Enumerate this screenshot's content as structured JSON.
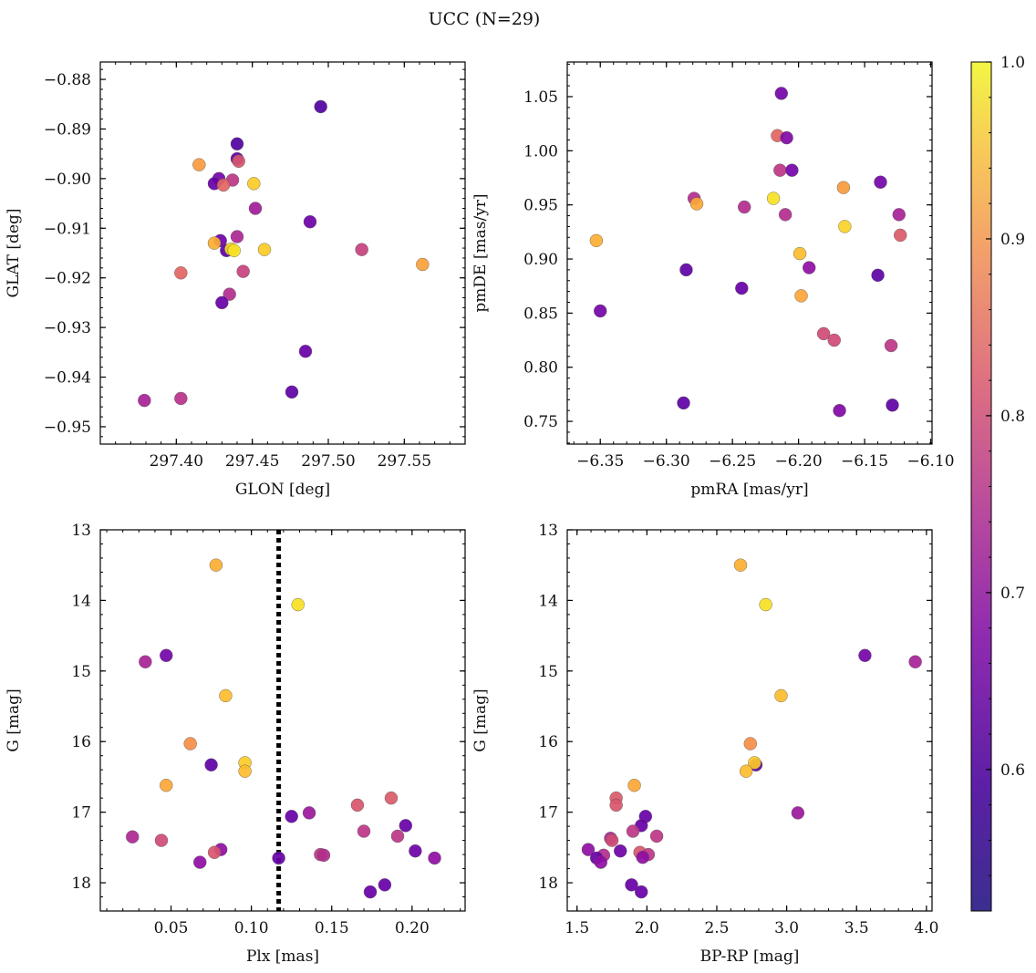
{
  "figure": {
    "title": "UCC (N=29)"
  },
  "colorbar": {
    "colormap": "plasma",
    "range": [
      0.52,
      1.0
    ],
    "ticks": [
      0.6,
      0.7,
      0.8,
      0.9,
      1.0
    ],
    "tick_labels": [
      "0.6",
      "0.7",
      "0.8",
      "0.9",
      "1.0"
    ]
  },
  "chart_data": [
    {
      "type": "scatter",
      "xlabel": "GLON [deg]",
      "ylabel": "GLAT [deg]",
      "xlim": [
        297.35,
        297.59
      ],
      "ylim": [
        -0.9535,
        -0.8765
      ],
      "xticks": [
        297.4,
        297.45,
        297.5,
        297.55
      ],
      "xtick_labels": [
        "297.40",
        "297.45",
        "297.50",
        "297.55"
      ],
      "yticks": [
        -0.88,
        -0.89,
        -0.9,
        -0.91,
        -0.92,
        -0.93,
        -0.94,
        -0.95
      ],
      "ytick_labels": [
        "−0.88",
        "−0.89",
        "−0.90",
        "−0.91",
        "−0.92",
        "−0.93",
        "−0.94",
        "−0.95"
      ],
      "points": [
        {
          "x": 297.495,
          "y": -0.8855,
          "c": 0.53
        },
        {
          "x": 297.44,
          "y": -0.893,
          "c": 0.53
        },
        {
          "x": 297.44,
          "y": -0.896,
          "c": 0.55
        },
        {
          "x": 297.441,
          "y": -0.8965,
          "c": 0.76
        },
        {
          "x": 297.415,
          "y": -0.8972,
          "c": 0.88
        },
        {
          "x": 297.428,
          "y": -0.9,
          "c": 0.58
        },
        {
          "x": 297.437,
          "y": -0.9003,
          "c": 0.7
        },
        {
          "x": 297.425,
          "y": -0.901,
          "c": 0.56
        },
        {
          "x": 297.431,
          "y": -0.9013,
          "c": 0.79
        },
        {
          "x": 297.451,
          "y": -0.901,
          "c": 0.95
        },
        {
          "x": 297.452,
          "y": -0.906,
          "c": 0.65
        },
        {
          "x": 297.488,
          "y": -0.9087,
          "c": 0.57
        },
        {
          "x": 297.44,
          "y": -0.9117,
          "c": 0.67
        },
        {
          "x": 297.429,
          "y": -0.9125,
          "c": 0.57
        },
        {
          "x": 297.425,
          "y": -0.913,
          "c": 0.91
        },
        {
          "x": 297.433,
          "y": -0.9145,
          "c": 0.55
        },
        {
          "x": 297.436,
          "y": -0.9142,
          "c": 0.97
        },
        {
          "x": 297.438,
          "y": -0.9145,
          "c": 0.98
        },
        {
          "x": 297.458,
          "y": -0.9143,
          "c": 0.95
        },
        {
          "x": 297.522,
          "y": -0.9143,
          "c": 0.72
        },
        {
          "x": 297.562,
          "y": -0.9173,
          "c": 0.89
        },
        {
          "x": 297.403,
          "y": -0.919,
          "c": 0.79
        },
        {
          "x": 297.444,
          "y": -0.9187,
          "c": 0.72
        },
        {
          "x": 297.435,
          "y": -0.9233,
          "c": 0.68
        },
        {
          "x": 297.43,
          "y": -0.925,
          "c": 0.56
        },
        {
          "x": 297.485,
          "y": -0.9348,
          "c": 0.56
        },
        {
          "x": 297.476,
          "y": -0.943,
          "c": 0.55
        },
        {
          "x": 297.379,
          "y": -0.9447,
          "c": 0.66
        },
        {
          "x": 297.403,
          "y": -0.9443,
          "c": 0.69
        }
      ]
    },
    {
      "type": "scatter",
      "xlabel": "pmRA [mas/yr]",
      "ylabel": "pmDE [mas/yr]",
      "xlim": [
        -6.375,
        -6.099
      ],
      "ylim": [
        0.729,
        1.082
      ],
      "xticks": [
        -6.35,
        -6.3,
        -6.25,
        -6.2,
        -6.15,
        -6.1
      ],
      "xtick_labels": [
        "−6.35",
        "−6.30",
        "−6.25",
        "−6.20",
        "−6.15",
        "−6.10"
      ],
      "yticks": [
        0.75,
        0.8,
        0.85,
        0.9,
        0.95,
        1.0,
        1.05
      ],
      "ytick_labels": [
        "0.75",
        "0.80",
        "0.85",
        "0.90",
        "0.95",
        "1.00",
        "1.05"
      ],
      "points": [
        {
          "x": -6.213,
          "y": 1.053,
          "c": 0.58
        },
        {
          "x": -6.216,
          "y": 1.014,
          "c": 0.79
        },
        {
          "x": -6.209,
          "y": 1.012,
          "c": 0.6
        },
        {
          "x": -6.214,
          "y": 0.982,
          "c": 0.7
        },
        {
          "x": -6.205,
          "y": 0.982,
          "c": 0.58
        },
        {
          "x": -6.138,
          "y": 0.971,
          "c": 0.58
        },
        {
          "x": -6.166,
          "y": 0.966,
          "c": 0.88
        },
        {
          "x": -6.279,
          "y": 0.956,
          "c": 0.68
        },
        {
          "x": -6.219,
          "y": 0.956,
          "c": 0.98
        },
        {
          "x": -6.277,
          "y": 0.951,
          "c": 0.9
        },
        {
          "x": -6.241,
          "y": 0.948,
          "c": 0.68
        },
        {
          "x": -6.21,
          "y": 0.941,
          "c": 0.68
        },
        {
          "x": -6.124,
          "y": 0.941,
          "c": 0.66
        },
        {
          "x": -6.165,
          "y": 0.93,
          "c": 0.96
        },
        {
          "x": -6.123,
          "y": 0.922,
          "c": 0.77
        },
        {
          "x": -6.353,
          "y": 0.917,
          "c": 0.91
        },
        {
          "x": -6.199,
          "y": 0.905,
          "c": 0.93
        },
        {
          "x": -6.192,
          "y": 0.892,
          "c": 0.62
        },
        {
          "x": -6.285,
          "y": 0.89,
          "c": 0.55
        },
        {
          "x": -6.14,
          "y": 0.885,
          "c": 0.55
        },
        {
          "x": -6.243,
          "y": 0.873,
          "c": 0.56
        },
        {
          "x": -6.198,
          "y": 0.866,
          "c": 0.9
        },
        {
          "x": -6.35,
          "y": 0.852,
          "c": 0.58
        },
        {
          "x": -6.181,
          "y": 0.831,
          "c": 0.74
        },
        {
          "x": -6.173,
          "y": 0.825,
          "c": 0.74
        },
        {
          "x": -6.13,
          "y": 0.82,
          "c": 0.7
        },
        {
          "x": -6.287,
          "y": 0.767,
          "c": 0.55
        },
        {
          "x": -6.129,
          "y": 0.765,
          "c": 0.55
        },
        {
          "x": -6.169,
          "y": 0.76,
          "c": 0.6
        }
      ]
    },
    {
      "type": "scatter",
      "xlabel": "Plx [mas]",
      "ylabel": "G [mag]",
      "xlim": [
        0.006,
        0.233
      ],
      "ylim": [
        18.4,
        13.0
      ],
      "xticks": [
        0.05,
        0.1,
        0.15,
        0.2
      ],
      "xtick_labels": [
        "0.05",
        "0.10",
        "0.15",
        "0.20"
      ],
      "yticks": [
        13,
        14,
        15,
        16,
        17,
        18
      ],
      "ytick_labels": [
        "13",
        "14",
        "15",
        "16",
        "17",
        "18"
      ],
      "vline": {
        "x": 0.117,
        "style": "dotted",
        "color": "#000000"
      },
      "points": [
        {
          "x": 0.078,
          "y": 13.5,
          "c": 0.91
        },
        {
          "x": 0.129,
          "y": 14.06,
          "c": 0.98
        },
        {
          "x": 0.034,
          "y": 14.87,
          "c": 0.66
        },
        {
          "x": 0.047,
          "y": 14.78,
          "c": 0.58
        },
        {
          "x": 0.084,
          "y": 15.35,
          "c": 0.93
        },
        {
          "x": 0.062,
          "y": 16.03,
          "c": 0.86
        },
        {
          "x": 0.075,
          "y": 16.33,
          "c": 0.55
        },
        {
          "x": 0.096,
          "y": 16.3,
          "c": 0.95
        },
        {
          "x": 0.096,
          "y": 16.42,
          "c": 0.93
        },
        {
          "x": 0.047,
          "y": 16.62,
          "c": 0.9
        },
        {
          "x": 0.187,
          "y": 16.8,
          "c": 0.77
        },
        {
          "x": 0.166,
          "y": 16.9,
          "c": 0.76
        },
        {
          "x": 0.136,
          "y": 17.01,
          "c": 0.64
        },
        {
          "x": 0.125,
          "y": 17.06,
          "c": 0.56
        },
        {
          "x": 0.196,
          "y": 17.19,
          "c": 0.56
        },
        {
          "x": 0.17,
          "y": 17.27,
          "c": 0.7
        },
        {
          "x": 0.191,
          "y": 17.34,
          "c": 0.7
        },
        {
          "x": 0.026,
          "y": 17.35,
          "c": 0.67
        },
        {
          "x": 0.044,
          "y": 17.4,
          "c": 0.74
        },
        {
          "x": 0.081,
          "y": 17.53,
          "c": 0.62
        },
        {
          "x": 0.077,
          "y": 17.57,
          "c": 0.76
        },
        {
          "x": 0.202,
          "y": 17.55,
          "c": 0.57
        },
        {
          "x": 0.143,
          "y": 17.6,
          "c": 0.7
        },
        {
          "x": 0.145,
          "y": 17.61,
          "c": 0.68
        },
        {
          "x": 0.214,
          "y": 17.65,
          "c": 0.62
        },
        {
          "x": 0.117,
          "y": 17.65,
          "c": 0.56
        },
        {
          "x": 0.068,
          "y": 17.71,
          "c": 0.62
        },
        {
          "x": 0.183,
          "y": 18.03,
          "c": 0.56
        },
        {
          "x": 0.174,
          "y": 18.13,
          "c": 0.56
        }
      ]
    },
    {
      "type": "scatter",
      "xlabel": "BP-RP [mag]",
      "ylabel": "G [mag]",
      "xlim": [
        1.43,
        4.04
      ],
      "ylim": [
        18.4,
        13.0
      ],
      "xticks": [
        1.5,
        2.0,
        2.5,
        3.0,
        3.5,
        4.0
      ],
      "xtick_labels": [
        "1.5",
        "2.0",
        "2.5",
        "3.0",
        "3.5",
        "4.0"
      ],
      "yticks": [
        13,
        14,
        15,
        16,
        17,
        18
      ],
      "ytick_labels": [
        "13",
        "14",
        "15",
        "16",
        "17",
        "18"
      ],
      "points": [
        {
          "x": 2.67,
          "y": 13.5,
          "c": 0.91
        },
        {
          "x": 2.85,
          "y": 14.06,
          "c": 0.98
        },
        {
          "x": 3.56,
          "y": 14.78,
          "c": 0.58
        },
        {
          "x": 3.92,
          "y": 14.87,
          "c": 0.66
        },
        {
          "x": 2.96,
          "y": 15.35,
          "c": 0.93
        },
        {
          "x": 2.74,
          "y": 16.03,
          "c": 0.86
        },
        {
          "x": 2.78,
          "y": 16.33,
          "c": 0.55
        },
        {
          "x": 2.77,
          "y": 16.3,
          "c": 0.95
        },
        {
          "x": 2.71,
          "y": 16.42,
          "c": 0.93
        },
        {
          "x": 1.91,
          "y": 16.62,
          "c": 0.9
        },
        {
          "x": 1.78,
          "y": 16.8,
          "c": 0.77
        },
        {
          "x": 1.78,
          "y": 16.9,
          "c": 0.76
        },
        {
          "x": 3.08,
          "y": 17.01,
          "c": 0.64
        },
        {
          "x": 1.99,
          "y": 17.06,
          "c": 0.56
        },
        {
          "x": 1.96,
          "y": 17.19,
          "c": 0.56
        },
        {
          "x": 1.9,
          "y": 17.27,
          "c": 0.7
        },
        {
          "x": 2.07,
          "y": 17.34,
          "c": 0.7
        },
        {
          "x": 1.74,
          "y": 17.37,
          "c": 0.67
        },
        {
          "x": 1.75,
          "y": 17.4,
          "c": 0.74
        },
        {
          "x": 1.58,
          "y": 17.53,
          "c": 0.62
        },
        {
          "x": 1.81,
          "y": 17.55,
          "c": 0.57
        },
        {
          "x": 1.95,
          "y": 17.57,
          "c": 0.76
        },
        {
          "x": 2.01,
          "y": 17.6,
          "c": 0.7
        },
        {
          "x": 1.69,
          "y": 17.61,
          "c": 0.68
        },
        {
          "x": 1.97,
          "y": 17.64,
          "c": 0.62
        },
        {
          "x": 1.64,
          "y": 17.65,
          "c": 0.56
        },
        {
          "x": 1.67,
          "y": 17.71,
          "c": 0.62
        },
        {
          "x": 1.89,
          "y": 18.03,
          "c": 0.56
        },
        {
          "x": 1.96,
          "y": 18.13,
          "c": 0.56
        }
      ]
    }
  ]
}
